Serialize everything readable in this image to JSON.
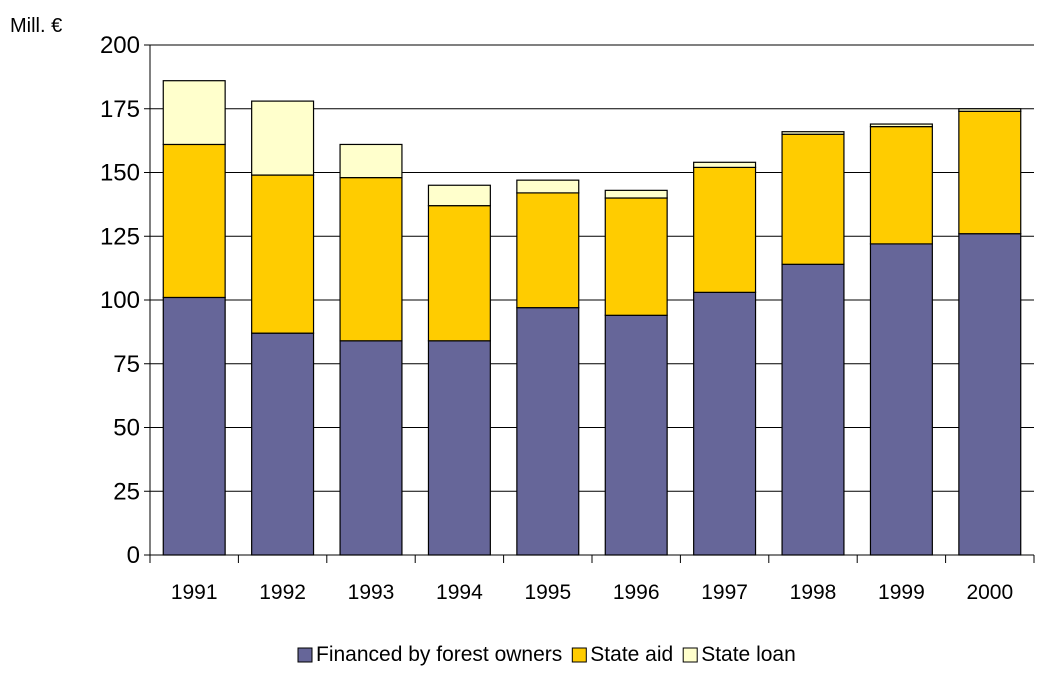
{
  "chart_data": {
    "type": "bar",
    "stacked": true,
    "title": "",
    "xlabel": "",
    "ylabel": "Mill. €",
    "ylim": [
      0,
      200
    ],
    "yticks": [
      0,
      25,
      50,
      75,
      100,
      125,
      150,
      175,
      200
    ],
    "grid": true,
    "legend_position": "bottom",
    "categories": [
      "1991",
      "1992",
      "1993",
      "1994",
      "1995",
      "1996",
      "1997",
      "1998",
      "1999",
      "2000"
    ],
    "series": [
      {
        "name": "Financed by forest owners",
        "color": "#666699",
        "values": [
          101,
          87,
          84,
          84,
          97,
          94,
          103,
          114,
          122,
          126
        ]
      },
      {
        "name": "State aid",
        "color": "#ffcc00",
        "values": [
          60,
          62,
          64,
          53,
          45,
          46,
          49,
          51,
          46,
          48
        ]
      },
      {
        "name": "State loan",
        "color": "#ffffcc",
        "values": [
          25,
          29,
          13,
          8,
          5,
          3,
          2,
          1,
          1,
          1
        ]
      }
    ]
  }
}
